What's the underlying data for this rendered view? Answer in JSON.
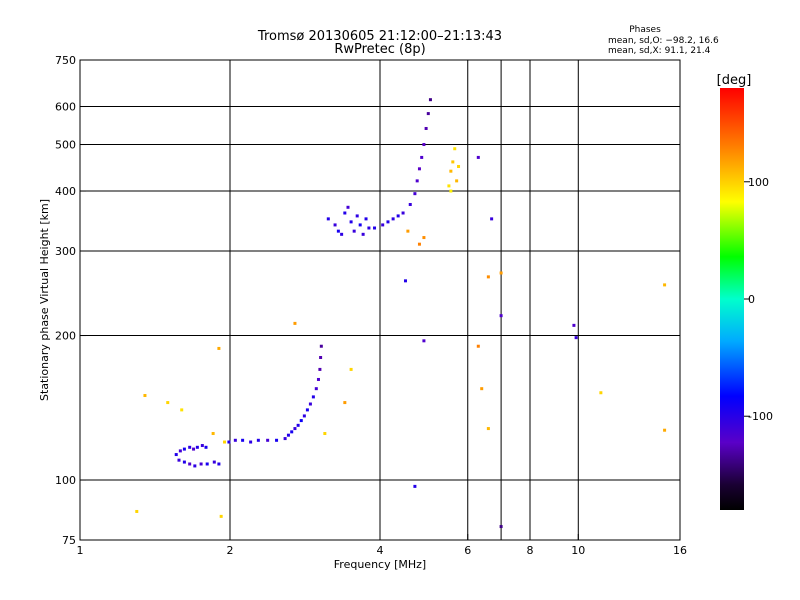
{
  "chart_data": {
    "type": "scatter",
    "title": "Tromsø 20130605 21:12:00–21:13:43",
    "subtitle": "RwPretec (8p)",
    "xlabel": "Frequency [MHz]",
    "ylabel": "Stationary phase Virtual Height [km]",
    "x_scale": "log",
    "y_scale": "log",
    "xlim": [
      1,
      16
    ],
    "ylim": [
      75,
      750
    ],
    "x_ticks": [
      1,
      2,
      4,
      6,
      8,
      10,
      16
    ],
    "x_tick_labels": [
      "1",
      "2",
      "4",
      "6",
      "8",
      "10",
      "16"
    ],
    "x_grid": [
      2,
      4,
      6,
      7,
      8,
      10
    ],
    "y_ticks": [
      75,
      100,
      200,
      300,
      400,
      500,
      600,
      750
    ],
    "y_tick_labels": [
      "75",
      "100",
      "200",
      "300",
      "400",
      "500",
      "600",
      "750"
    ],
    "y_grid": [
      100,
      200,
      300,
      400,
      500,
      600
    ],
    "phase_stats": {
      "title": "Phases",
      "o_line": "mean, sd,O: −98.2, 16.6",
      "x_line": "mean, sd,X:  91.1, 21.4"
    },
    "colorbar": {
      "label": "[deg]",
      "range": [
        -180,
        180
      ],
      "ticks": [
        100,
        0,
        -100
      ],
      "tick_labels": [
        "100",
        "0",
        "-100"
      ]
    },
    "series": [
      {
        "name": "O-mode (blue/purple traces)",
        "points": [
          [
            1.56,
            113,
            -100
          ],
          [
            1.59,
            115,
            -115
          ],
          [
            1.62,
            116,
            -95
          ],
          [
            1.66,
            117,
            -105
          ],
          [
            1.69,
            116,
            -120
          ],
          [
            1.72,
            117,
            -100
          ],
          [
            1.76,
            118,
            -110
          ],
          [
            1.79,
            117,
            -95
          ],
          [
            1.58,
            110,
            -110
          ],
          [
            1.62,
            109,
            -100
          ],
          [
            1.66,
            108,
            -120
          ],
          [
            1.7,
            107,
            -105
          ],
          [
            1.75,
            108,
            -115
          ],
          [
            1.8,
            108,
            -95
          ],
          [
            1.86,
            109,
            -110
          ],
          [
            1.9,
            108,
            -100
          ],
          [
            1.99,
            120,
            -100
          ],
          [
            2.05,
            121,
            -110
          ],
          [
            2.12,
            121,
            -95
          ],
          [
            2.2,
            120,
            -105
          ],
          [
            2.28,
            121,
            -100
          ],
          [
            2.38,
            121,
            -115
          ],
          [
            2.48,
            121,
            -95
          ],
          [
            2.58,
            122,
            -110
          ],
          [
            2.62,
            124,
            -100
          ],
          [
            2.66,
            126,
            -95
          ],
          [
            2.7,
            128,
            -110
          ],
          [
            2.74,
            130,
            -100
          ],
          [
            2.78,
            133,
            -90
          ],
          [
            2.82,
            136,
            -105
          ],
          [
            2.86,
            140,
            -95
          ],
          [
            2.9,
            144,
            -110
          ],
          [
            2.94,
            149,
            -100
          ],
          [
            2.98,
            155,
            -115
          ],
          [
            3.01,
            162,
            -120
          ],
          [
            3.03,
            170,
            -130
          ],
          [
            3.04,
            180,
            -130
          ],
          [
            3.05,
            190,
            -135
          ],
          [
            3.15,
            350,
            -100
          ],
          [
            3.25,
            340,
            -110
          ],
          [
            3.3,
            330,
            -95
          ],
          [
            3.35,
            325,
            -105
          ],
          [
            3.4,
            360,
            -100
          ],
          [
            3.45,
            370,
            -115
          ],
          [
            3.5,
            345,
            -100
          ],
          [
            3.55,
            330,
            -110
          ],
          [
            3.6,
            355,
            -105
          ],
          [
            3.65,
            340,
            -95
          ],
          [
            3.7,
            325,
            -110
          ],
          [
            3.75,
            350,
            -100
          ],
          [
            3.8,
            335,
            -105
          ],
          [
            3.9,
            335,
            -100
          ],
          [
            4.05,
            340,
            -110
          ],
          [
            4.15,
            345,
            -100
          ],
          [
            4.25,
            350,
            -105
          ],
          [
            4.35,
            355,
            -100
          ],
          [
            4.45,
            360,
            -110
          ],
          [
            4.6,
            375,
            -110
          ],
          [
            4.7,
            395,
            -115
          ],
          [
            4.75,
            420,
            -120
          ],
          [
            4.8,
            445,
            -125
          ],
          [
            4.85,
            470,
            -120
          ],
          [
            4.9,
            500,
            -125
          ],
          [
            4.95,
            540,
            -130
          ],
          [
            5.0,
            580,
            -135
          ],
          [
            5.05,
            620,
            -140
          ],
          [
            4.5,
            260,
            -100
          ],
          [
            4.9,
            195,
            -120
          ],
          [
            4.7,
            97,
            -100
          ],
          [
            6.3,
            470,
            -120
          ],
          [
            6.7,
            350,
            -110
          ],
          [
            7.0,
            220,
            -120
          ],
          [
            7.0,
            80,
            -140
          ],
          [
            9.8,
            210,
            -120
          ],
          [
            9.9,
            198,
            -110
          ]
        ]
      },
      {
        "name": "X-mode (yellow/orange scatter)",
        "points": [
          [
            5.55,
            440,
            110
          ],
          [
            5.6,
            460,
            105
          ],
          [
            5.65,
            490,
            95
          ],
          [
            5.7,
            420,
            110
          ],
          [
            5.75,
            450,
            100
          ],
          [
            5.5,
            410,
            95
          ],
          [
            5.55,
            400,
            90
          ],
          [
            4.55,
            330,
            120
          ],
          [
            4.8,
            310,
            130
          ],
          [
            4.9,
            320,
            125
          ],
          [
            1.3,
            86,
            100
          ],
          [
            1.35,
            150,
            110
          ],
          [
            1.5,
            145,
            100
          ],
          [
            1.6,
            140,
            95
          ],
          [
            1.85,
            125,
            110
          ],
          [
            1.95,
            120,
            100
          ],
          [
            1.9,
            188,
            115
          ],
          [
            1.92,
            84,
            100
          ],
          [
            2.7,
            212,
            120
          ],
          [
            3.1,
            125,
            100
          ],
          [
            3.4,
            145,
            120
          ],
          [
            3.5,
            170,
            100
          ],
          [
            6.3,
            190,
            130
          ],
          [
            6.4,
            155,
            120
          ],
          [
            6.6,
            128,
            110
          ],
          [
            6.6,
            265,
            125
          ],
          [
            7.0,
            270,
            120
          ],
          [
            14.9,
            255,
            110
          ],
          [
            14.9,
            127,
            115
          ],
          [
            11.1,
            152,
            100
          ]
        ]
      }
    ]
  }
}
